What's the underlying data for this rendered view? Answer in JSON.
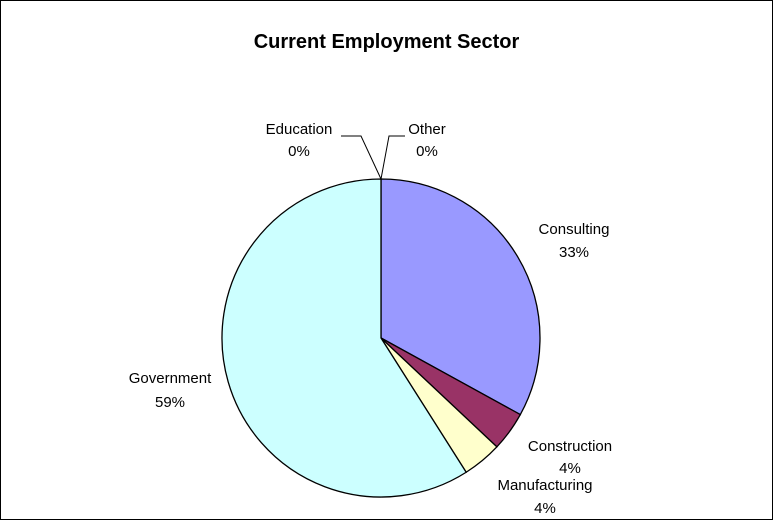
{
  "chart_data": {
    "type": "pie",
    "title": "Current Employment Sector",
    "slices": [
      {
        "label": "Consulting",
        "pct_label": "33%",
        "value": 33,
        "color": "#9999ff"
      },
      {
        "label": "Construction",
        "pct_label": "4%",
        "value": 4,
        "color": "#993366"
      },
      {
        "label": "Manufacturing",
        "pct_label": "4%",
        "value": 4,
        "color": "#ffffcc"
      },
      {
        "label": "Government",
        "pct_label": "59%",
        "value": 59,
        "color": "#ccffff"
      },
      {
        "label": "Education",
        "pct_label": "0%",
        "value": 0,
        "color": "#660066"
      },
      {
        "label": "Other",
        "pct_label": "0%",
        "value": 0,
        "color": "#ff8080"
      }
    ],
    "legend": "none",
    "start": "12 o'clock",
    "direction": "clockwise"
  }
}
